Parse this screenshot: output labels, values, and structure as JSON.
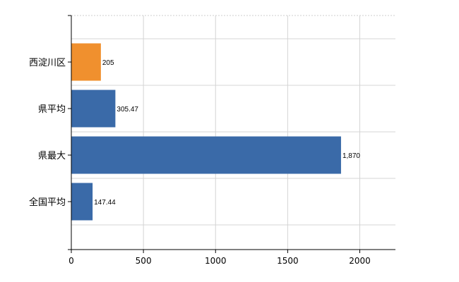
{
  "chart_data": {
    "type": "bar",
    "orientation": "horizontal",
    "categories": [
      "西淀川区",
      "県平均",
      "県最大",
      "全国平均"
    ],
    "values": [
      205,
      305.47,
      1870,
      147.44
    ],
    "value_labels": [
      "205",
      "305.47",
      "1,870",
      "147.44"
    ],
    "bar_colors": [
      "#f0902e",
      "#3a6aa8",
      "#3a6aa8",
      "#3a6aa8"
    ],
    "x_ticks": [
      "0",
      "500",
      "1000",
      "1500",
      "2000"
    ],
    "xlim": [
      0,
      2250
    ],
    "grid": true,
    "legend": "none"
  }
}
